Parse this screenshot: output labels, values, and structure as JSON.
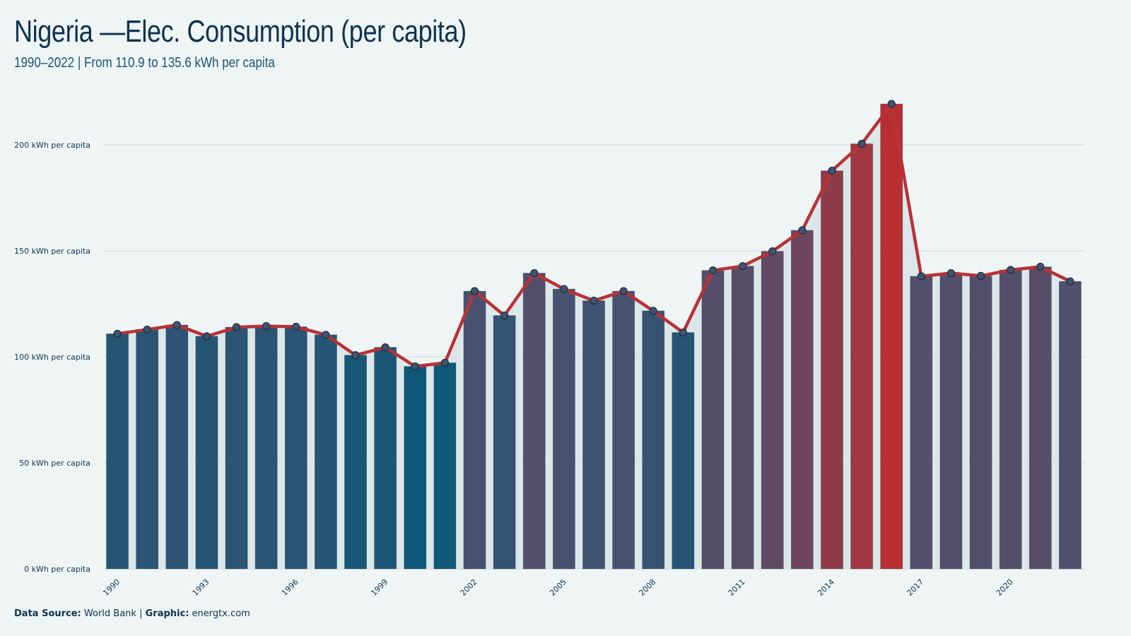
{
  "header": {
    "title": "Nigeria —Elec. Consumption (per capita)",
    "subtitle": "1990–2022 | From 110.9 to 135.6 kWh per capita"
  },
  "footer": {
    "source_label": "Data Source:",
    "source_value": "World Bank",
    "separator": "|",
    "graphic_label": "Graphic:",
    "graphic_value": "energtx.com"
  },
  "colors": {
    "background": "#eff5f5",
    "line": "#b83236",
    "low": "#0d5878",
    "mid": "#4a5170",
    "high": "#b82f33",
    "grid": "#d3dee0",
    "marker_fill": "#3f5470"
  },
  "chart_data": {
    "type": "bar",
    "overlay": "line",
    "x": [
      1990,
      1991,
      1992,
      1993,
      1994,
      1995,
      1996,
      1997,
      1998,
      1999,
      2000,
      2001,
      2002,
      2003,
      2004,
      2005,
      2006,
      2007,
      2008,
      2009,
      2010,
      2011,
      2012,
      2013,
      2014,
      2015,
      2016,
      2017,
      2018,
      2019,
      2020,
      2021,
      2022
    ],
    "values": [
      110.9,
      112.9,
      115.0,
      109.7,
      114.0,
      114.5,
      114.2,
      110.4,
      100.8,
      104.5,
      95.5,
      97.2,
      131.0,
      119.5,
      139.5,
      132.0,
      126.5,
      131.0,
      121.7,
      111.5,
      140.8,
      142.8,
      149.8,
      159.7,
      187.8,
      200.5,
      219.3,
      138.0,
      139.5,
      138.2,
      141.0,
      142.5,
      135.6
    ],
    "x_tick_labels": [
      "1990",
      "1993",
      "1996",
      "1999",
      "2002",
      "2005",
      "2008",
      "2011",
      "2014",
      "2017",
      "2020"
    ],
    "y_ticks": [
      0,
      50,
      100,
      150,
      200
    ],
    "y_tick_labels": [
      "0 kWh per capita",
      "50 kWh per capita",
      "100 kWh per capita",
      "150 kWh per capita",
      "200 kWh per capita"
    ],
    "ylim": [
      0,
      220
    ],
    "title": "Nigeria —Elec. Consumption (per capita)",
    "subtitle": "1990–2022 | From 110.9 to 135.6 kWh per capita",
    "xlabel": "",
    "ylabel": "",
    "grid": true,
    "legend": "none"
  }
}
